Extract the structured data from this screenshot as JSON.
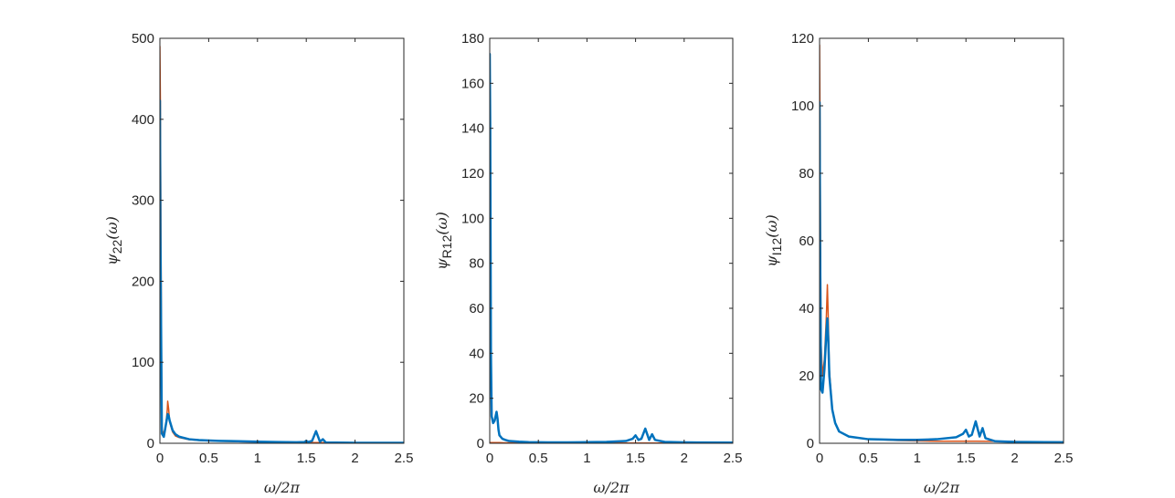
{
  "colors": {
    "series_orange": "#D95319",
    "series_blue": "#0072BD",
    "axes": "#262626"
  },
  "chart_data": [
    {
      "type": "line",
      "xlabel": "ω/2π",
      "ylabel": {
        "main": "ψ",
        "sub": "22",
        "arg": "(ω)"
      },
      "xlim": [
        0,
        2.5
      ],
      "ylim": [
        0,
        500
      ],
      "xticks": [
        0,
        0.5,
        1,
        1.5,
        2,
        2.5
      ],
      "xtick_labels": [
        "0",
        "0.5",
        "1",
        "1.5",
        "2",
        "2.5"
      ],
      "yticks": [
        0,
        100,
        200,
        300,
        400,
        500
      ],
      "ytick_labels": [
        "0",
        "100",
        "200",
        "300",
        "400",
        "500"
      ],
      "series": [
        {
          "color": "#D95319",
          "width": 1.5,
          "x": [
            0,
            0.005,
            0.02,
            0.04,
            0.06,
            0.075,
            0.08,
            0.09,
            0.1,
            0.13,
            0.16,
            0.2,
            0.3,
            0.4,
            0.6,
            0.8,
            1.0,
            1.2,
            1.4,
            1.5,
            1.6,
            1.7,
            2.0,
            2.5
          ],
          "y": [
            490,
            420,
            18,
            10,
            22,
            40,
            52,
            42,
            26,
            14,
            9,
            7,
            4.5,
            3.5,
            2.5,
            2,
            1.5,
            1.2,
            1,
            0.8,
            0.8,
            0.7,
            0.6,
            0.5
          ]
        },
        {
          "color": "#0072BD",
          "width": 2.5,
          "x": [
            0,
            0.005,
            0.02,
            0.04,
            0.06,
            0.08,
            0.09,
            0.1,
            0.13,
            0.16,
            0.2,
            0.3,
            0.4,
            0.6,
            0.8,
            1.0,
            1.2,
            1.4,
            1.48,
            1.5,
            1.52,
            1.56,
            1.6,
            1.64,
            1.67,
            1.7,
            1.8,
            2.0,
            2.5
          ],
          "y": [
            423,
            260,
            12,
            8,
            22,
            36,
            34,
            28,
            16,
            11,
            8,
            5,
            4,
            3,
            2.5,
            2,
            1.5,
            1.2,
            1.5,
            3,
            1.5,
            3,
            15,
            2,
            5,
            1,
            0.8,
            0.6,
            0.5
          ]
        }
      ]
    },
    {
      "type": "line",
      "xlabel": "ω/2π",
      "ylabel": {
        "main": "ψ",
        "sub": "R12",
        "arg": "(ω)"
      },
      "xlim": [
        0,
        2.5
      ],
      "ylim": [
        0,
        180
      ],
      "xticks": [
        0,
        0.5,
        1,
        1.5,
        2,
        2.5
      ],
      "xtick_labels": [
        "0",
        "0.5",
        "1",
        "1.5",
        "2",
        "2.5"
      ],
      "yticks": [
        0,
        20,
        40,
        60,
        80,
        100,
        120,
        140,
        160,
        180
      ],
      "ytick_labels": [
        "0",
        "20",
        "40",
        "60",
        "80",
        "100",
        "120",
        "140",
        "160",
        "180"
      ],
      "series": [
        {
          "color": "#D95319",
          "width": 1.5,
          "x": [
            0,
            0.005,
            0.02,
            0.04,
            0.07,
            0.1,
            0.15,
            0.2,
            0.3,
            0.5,
            0.8,
            1.0,
            1.4,
            1.5,
            1.6,
            1.7,
            2.0,
            2.5
          ],
          "y": [
            0.3,
            0.3,
            0.3,
            0.3,
            0.3,
            0.3,
            0.2,
            0.2,
            0.2,
            0.1,
            0.1,
            0.1,
            0.1,
            0.1,
            0.1,
            0.1,
            0.1,
            0.1
          ]
        },
        {
          "color": "#0072BD",
          "width": 2.5,
          "x": [
            0,
            0.005,
            0.012,
            0.02,
            0.035,
            0.05,
            0.07,
            0.08,
            0.09,
            0.1,
            0.13,
            0.16,
            0.2,
            0.3,
            0.4,
            0.6,
            0.8,
            1.0,
            1.2,
            1.4,
            1.47,
            1.5,
            1.53,
            1.56,
            1.6,
            1.64,
            1.67,
            1.7,
            1.8,
            2.0,
            2.5
          ],
          "y": [
            173,
            140,
            40,
            12,
            9,
            10,
            14,
            11,
            6,
            3.5,
            2,
            1.5,
            1,
            0.7,
            0.5,
            0.4,
            0.4,
            0.5,
            0.6,
            1,
            2,
            3.5,
            1.5,
            2,
            6.5,
            1.5,
            4,
            1.5,
            0.6,
            0.4,
            0.3
          ]
        }
      ]
    },
    {
      "type": "line",
      "xlabel": "ω/2π",
      "ylabel": {
        "main": "ψ",
        "sub": "I12",
        "arg": "(ω)"
      },
      "xlim": [
        0,
        2.5
      ],
      "ylim": [
        0,
        120
      ],
      "xticks": [
        0,
        0.5,
        1,
        1.5,
        2,
        2.5
      ],
      "xtick_labels": [
        "0",
        "0.5",
        "1",
        "1.5",
        "2",
        "2.5"
      ],
      "yticks": [
        0,
        20,
        40,
        60,
        80,
        100,
        120
      ],
      "ytick_labels": [
        "0",
        "20",
        "40",
        "60",
        "80",
        "100",
        "120"
      ],
      "series": [
        {
          "color": "#D95319",
          "width": 1.5,
          "x": [
            0,
            0.005,
            0.015,
            0.03,
            0.05,
            0.07,
            0.08,
            0.09,
            0.1,
            0.13,
            0.16,
            0.2,
            0.3,
            0.5,
            0.8,
            1.2,
            1.6,
            2.0,
            2.5
          ],
          "y": [
            118,
            90,
            30,
            20,
            25,
            38,
            47,
            36,
            22,
            10,
            6,
            3.5,
            2,
            1.2,
            0.8,
            0.6,
            0.6,
            0.5,
            0.4
          ]
        },
        {
          "color": "#0072BD",
          "width": 2.5,
          "x": [
            0,
            0.005,
            0.015,
            0.03,
            0.05,
            0.07,
            0.08,
            0.09,
            0.1,
            0.13,
            0.16,
            0.2,
            0.3,
            0.5,
            0.8,
            1.0,
            1.2,
            1.4,
            1.47,
            1.5,
            1.53,
            1.56,
            1.6,
            1.64,
            1.67,
            1.7,
            1.8,
            2.0,
            2.5
          ],
          "y": [
            101,
            60,
            16,
            15,
            22,
            33,
            37,
            30,
            20,
            10,
            6,
            3.5,
            2,
            1.2,
            1,
            1,
            1.2,
            1.8,
            2.8,
            4,
            2,
            2.5,
            6.5,
            2,
            4.5,
            1.5,
            0.6,
            0.4,
            0.3
          ]
        }
      ]
    }
  ]
}
